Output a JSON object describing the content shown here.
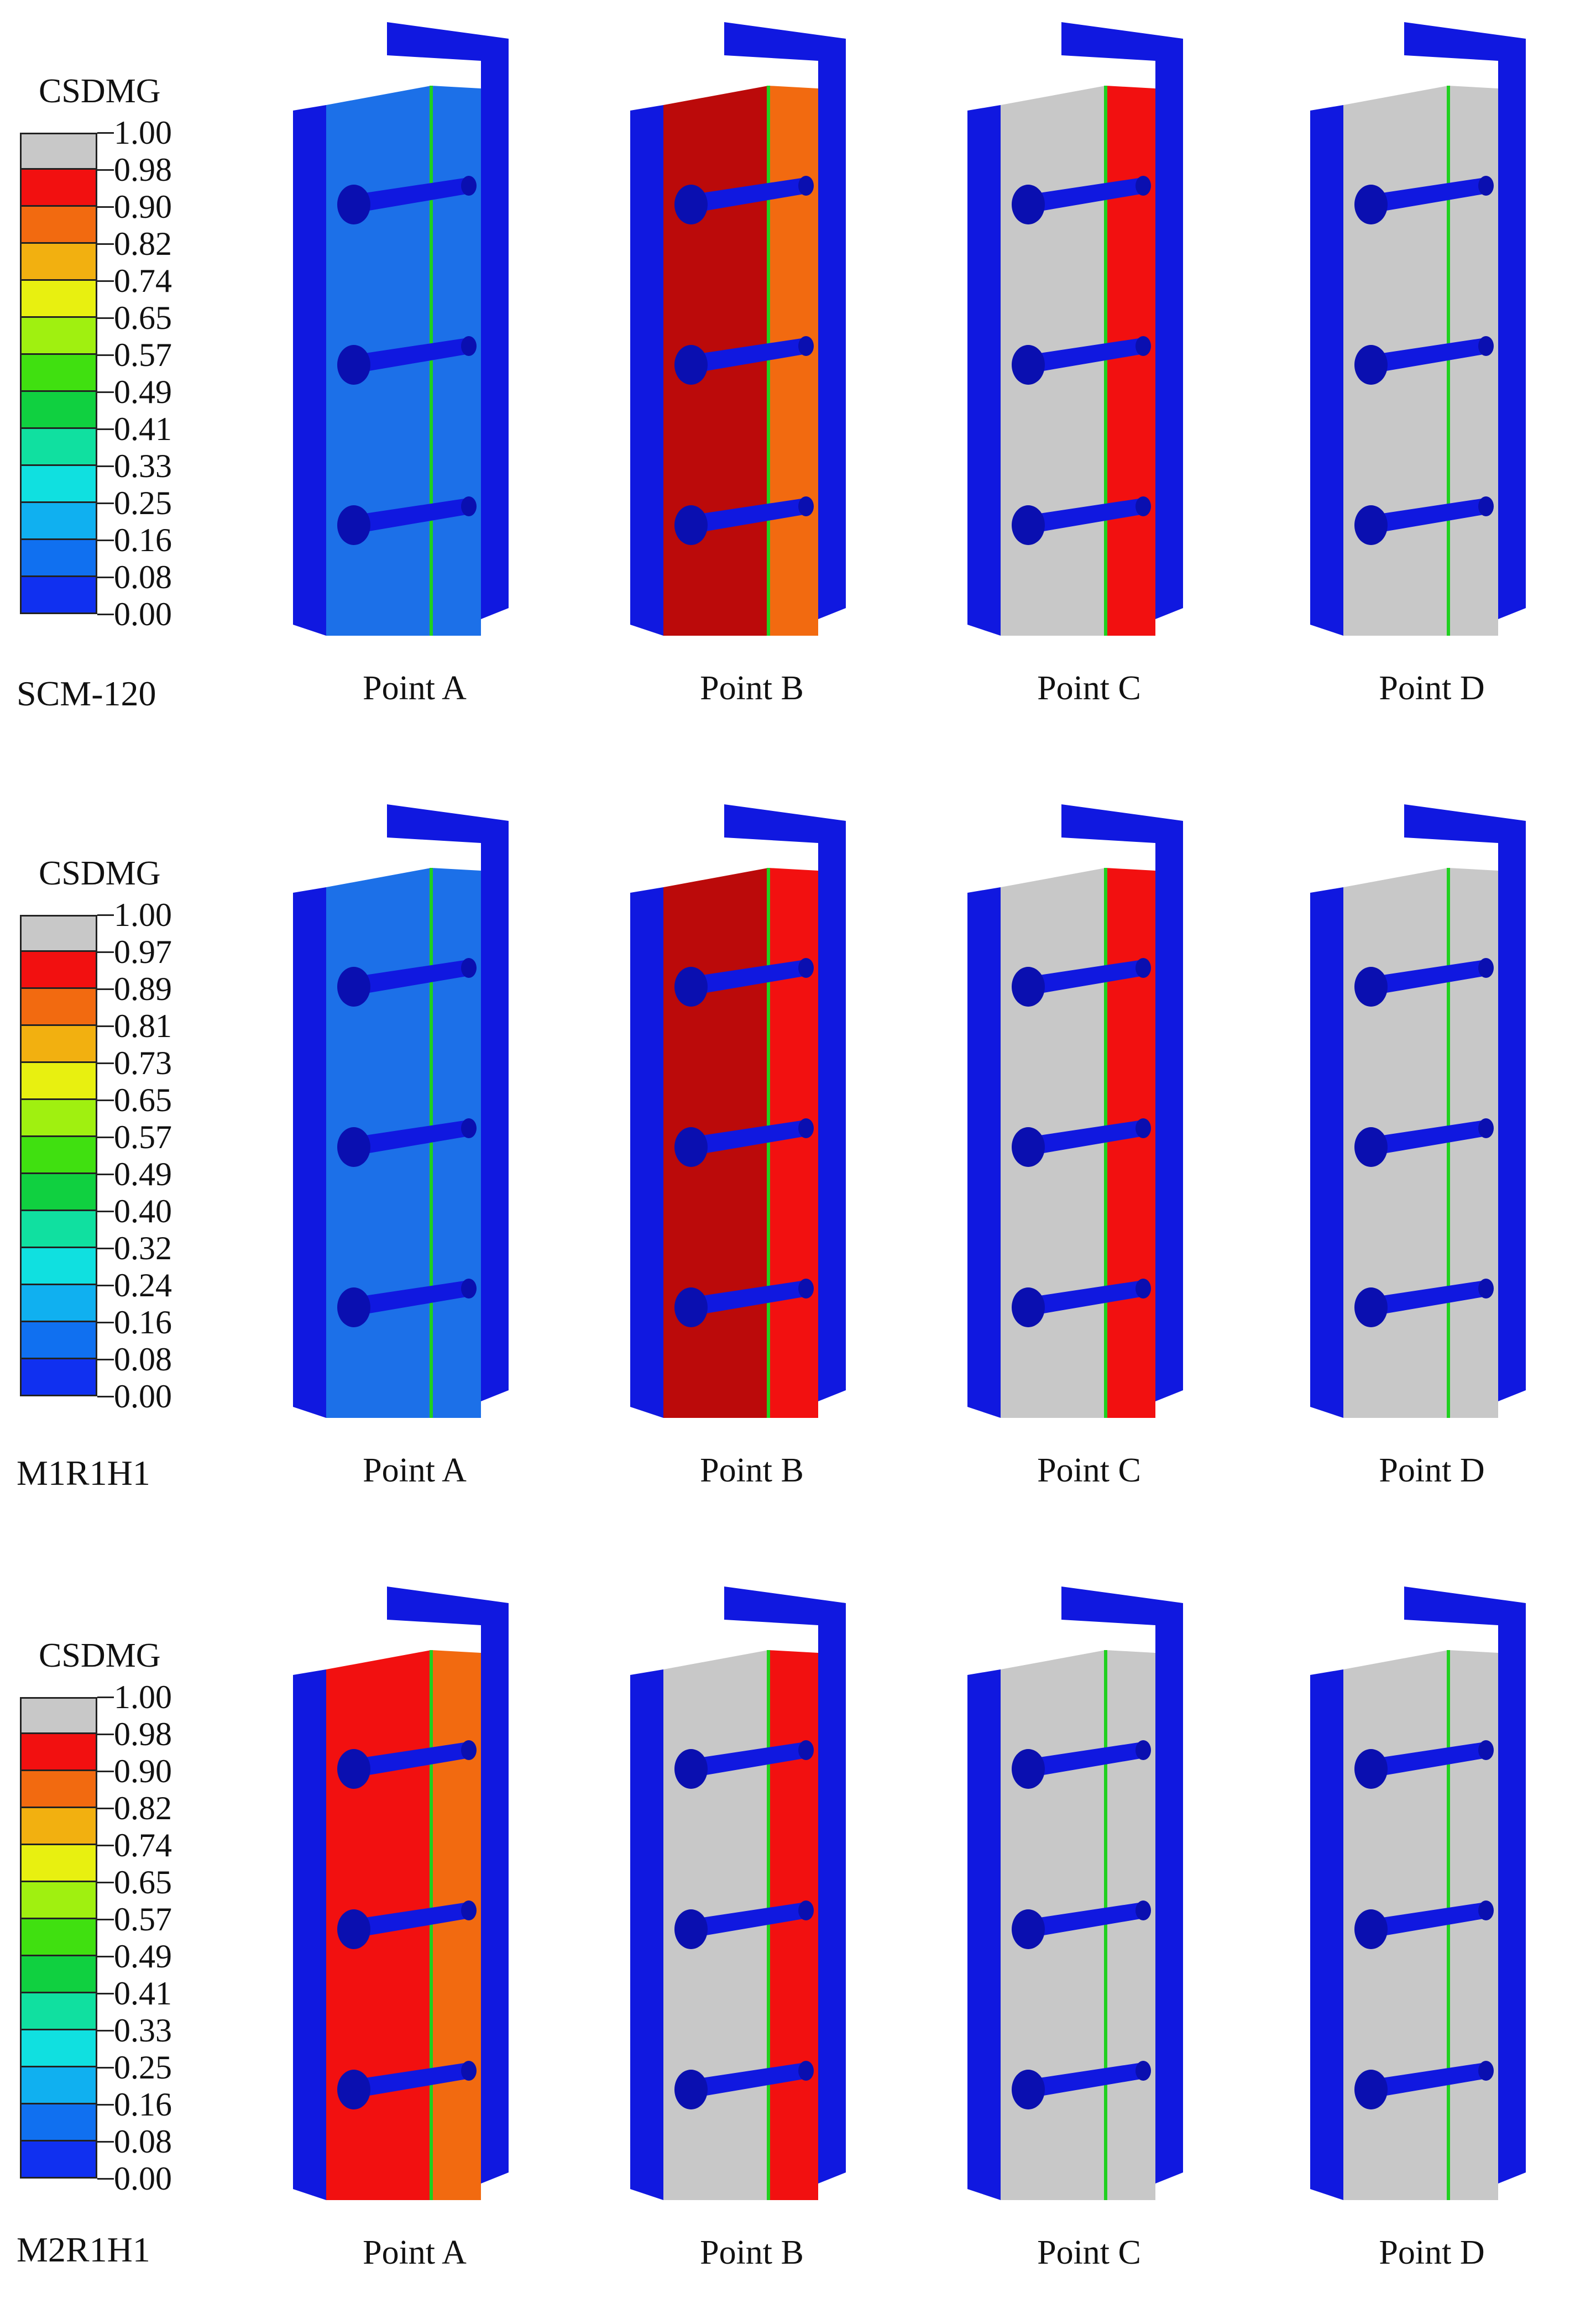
{
  "colors": {
    "steel_blue": "#1018e0",
    "steel_blue_dark": "#0a0fb0",
    "gray_failed": "#c8c8c8",
    "red": "#f21010",
    "dark_red": "#bb0a0a",
    "orange": "#f26a10",
    "amber": "#f2b010",
    "green": "#20d020",
    "cyan": "#10e0d0",
    "mid_blue": "#1c70e8"
  },
  "rows": [
    {
      "specimen": "SCM-120",
      "legend_title": "CSDMG",
      "legend_values": [
        "1.00",
        "0.98",
        "0.90",
        "0.82",
        "0.74",
        "0.65",
        "0.57",
        "0.49",
        "0.41",
        "0.33",
        "0.25",
        "0.16",
        "0.08",
        "0.00"
      ],
      "points": [
        {
          "label": "Point A",
          "web": "blue",
          "flange": "blue"
        },
        {
          "label": "Point B",
          "web": "dark-red",
          "flange": "orange"
        },
        {
          "label": "Point C",
          "web": "gray",
          "flange": "red"
        },
        {
          "label": "Point D",
          "web": "gray",
          "flange": "gray"
        }
      ]
    },
    {
      "specimen": "M1R1H1",
      "legend_title": "CSDMG",
      "legend_values": [
        "1.00",
        "0.97",
        "0.89",
        "0.81",
        "0.73",
        "0.65",
        "0.57",
        "0.49",
        "0.40",
        "0.32",
        "0.24",
        "0.16",
        "0.08",
        "0.00"
      ],
      "points": [
        {
          "label": "Point A",
          "web": "blue",
          "flange": "blue"
        },
        {
          "label": "Point B",
          "web": "dark-red",
          "flange": "red"
        },
        {
          "label": "Point C",
          "web": "gray",
          "flange": "red"
        },
        {
          "label": "Point D",
          "web": "gray",
          "flange": "gray"
        }
      ]
    },
    {
      "specimen": "M2R1H1",
      "legend_title": "CSDMG",
      "legend_values": [
        "1.00",
        "0.98",
        "0.90",
        "0.82",
        "0.74",
        "0.65",
        "0.57",
        "0.49",
        "0.41",
        "0.33",
        "0.25",
        "0.16",
        "0.08",
        "0.00"
      ],
      "points": [
        {
          "label": "Point A",
          "web": "red",
          "flange": "orange"
        },
        {
          "label": "Point B",
          "web": "gray",
          "flange": "red"
        },
        {
          "label": "Point C",
          "web": "gray",
          "flange": "gray"
        },
        {
          "label": "Point D",
          "web": "gray",
          "flange": "gray"
        }
      ]
    }
  ],
  "legend_colors": [
    "#c8c8c8",
    "#f21010",
    "#f26a10",
    "#f2b010",
    "#e8f010",
    "#a0f010",
    "#40e010",
    "#10d040",
    "#10e0a0",
    "#10e0e0",
    "#10b0f0",
    "#1070f0",
    "#1030f0"
  ]
}
